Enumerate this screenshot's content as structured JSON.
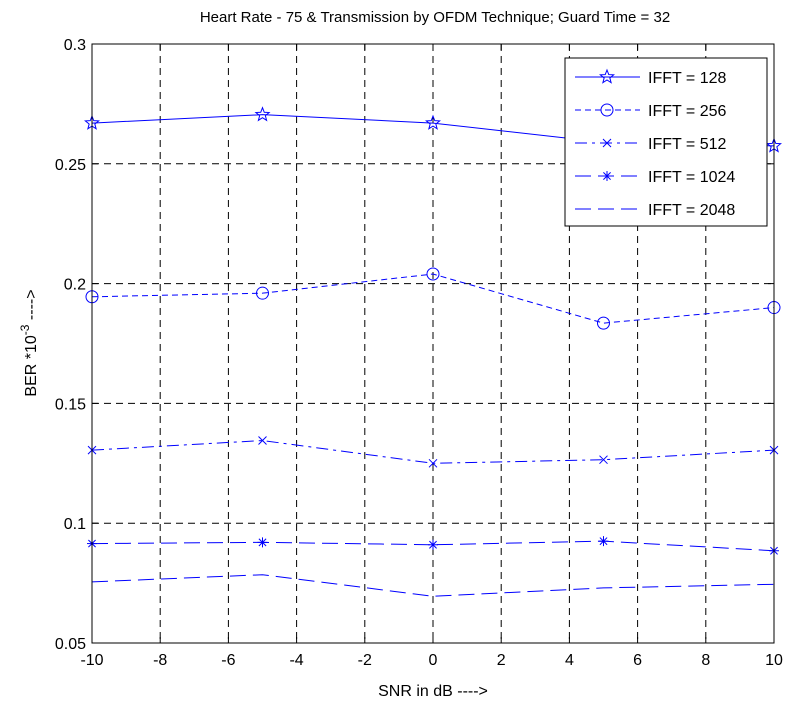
{
  "chart_data": {
    "type": "line",
    "title": "Heart Rate - 75 & Transmission by OFDM Technique;  Guard Time = 32",
    "xlabel": "SNR in dB ---->",
    "ylabel": {
      "base": "BER *10",
      "superscript": "-3",
      "suffix": " ---->"
    },
    "xlim": [
      -10,
      10
    ],
    "ylim": [
      0.05,
      0.3
    ],
    "xticks": [
      -10,
      -8,
      -6,
      -4,
      -2,
      0,
      2,
      4,
      6,
      8,
      10
    ],
    "yticks": [
      0.05,
      0.1,
      0.15,
      0.2,
      0.25,
      0.3
    ],
    "xtick_labels": [
      "-10",
      "-8",
      "-6",
      "-4",
      "-2",
      "0",
      "2",
      "4",
      "6",
      "8",
      "10"
    ],
    "ytick_labels": [
      "0.05",
      "0.1",
      "0.15",
      "0.2",
      "0.25",
      "0.3"
    ],
    "grid": true,
    "legend_position": "top-right",
    "line_color": "#0000ff",
    "x": [
      -10,
      -5,
      0,
      5,
      10
    ],
    "series": [
      {
        "name": "IFFT = 128",
        "values": [
          0.267,
          0.2705,
          0.267,
          0.259,
          0.2575
        ],
        "marker": "star",
        "dash": "solid"
      },
      {
        "name": "IFFT = 256",
        "values": [
          0.1945,
          0.196,
          0.204,
          0.1835,
          0.19
        ],
        "marker": "circle",
        "dash": "dashed"
      },
      {
        "name": "IFFT = 512",
        "values": [
          0.1305,
          0.1345,
          0.125,
          0.1265,
          0.1305
        ],
        "marker": "x",
        "dash": "dashdot"
      },
      {
        "name": "IFFT = 1024",
        "values": [
          0.0915,
          0.092,
          0.091,
          0.0925,
          0.0885
        ],
        "marker": "asterisk",
        "dash": "longdash"
      },
      {
        "name": "IFFT = 2048",
        "values": [
          0.0755,
          0.0785,
          0.0695,
          0.073,
          0.0745
        ],
        "marker": "none",
        "dash": "longdash"
      }
    ]
  }
}
